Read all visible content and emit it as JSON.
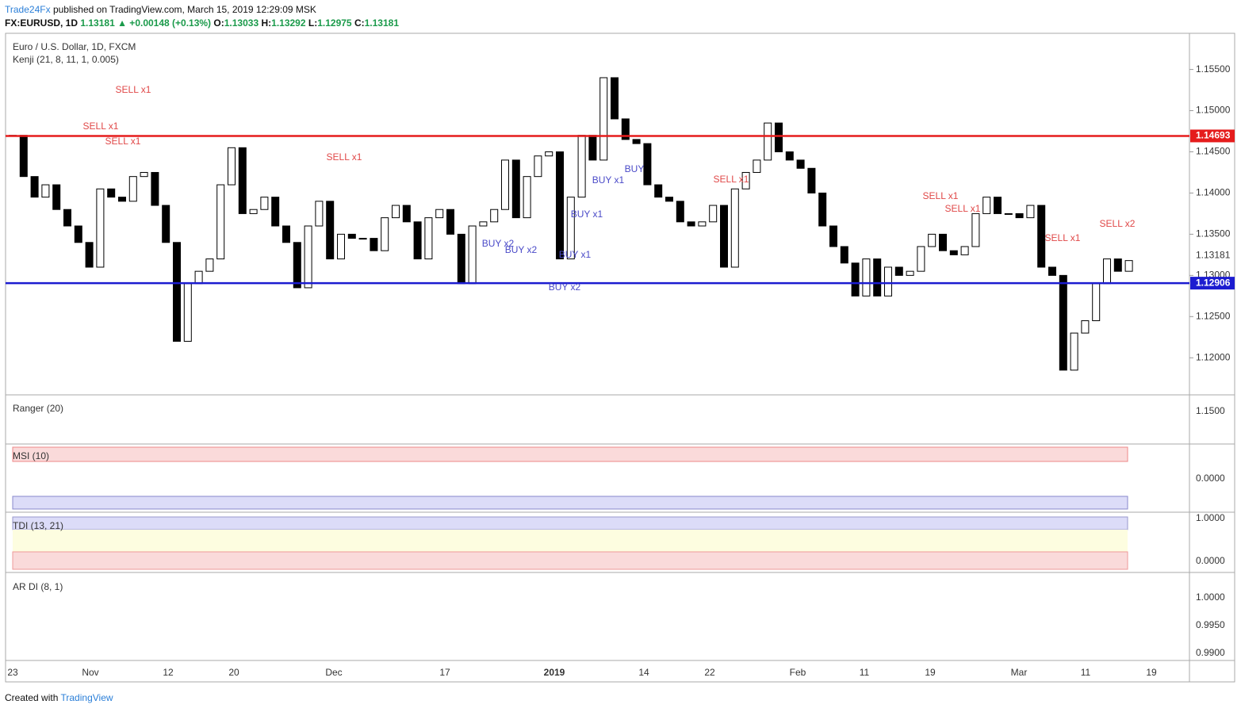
{
  "header": {
    "publisher": "Trade24Fx",
    "published": "published on TradingView.com, March 15, 2019 12:29:09 MSK",
    "symbol": "FX:EURUSD, 1D",
    "last": "1.13181",
    "change": "▲ +0.00148 (+0.13%)",
    "o_label": "O:",
    "o": "1.13033",
    "h_label": "H:",
    "h": "1.13292",
    "l_label": "L:",
    "l": "1.12975",
    "c_label": "C:",
    "c": "1.13181"
  },
  "chart_data": {
    "type": "candlestick",
    "title": "Euro / U.S. Dollar, 1D, FXCM",
    "indicator": "Kenji (21, 8, 11, 1, 0.005)",
    "values": [
      1.147,
      1.142,
      1.1395,
      1.141,
      1.138,
      1.136,
      1.134,
      1.131,
      1.1405,
      1.1395,
      1.139,
      1.142,
      1.1425,
      1.1385,
      1.134,
      1.122,
      1.129,
      1.1305,
      1.132,
      1.141,
      1.1455,
      1.1375,
      1.138,
      1.1395,
      1.136,
      1.134,
      1.1285,
      1.136,
      1.139,
      1.132,
      1.135,
      1.1345,
      1.1345,
      1.133,
      1.137,
      1.1385,
      1.1365,
      1.132,
      1.137,
      1.138,
      1.135,
      1.129,
      1.136,
      1.1365,
      1.138,
      1.144,
      1.137,
      1.142,
      1.1445,
      1.145,
      1.132,
      1.1395,
      1.147,
      1.144,
      1.154,
      1.149,
      1.1465,
      1.146,
      1.141,
      1.1395,
      1.139,
      1.1365,
      1.136,
      1.1365,
      1.1385,
      1.131,
      1.1405,
      1.1425,
      1.144,
      1.1485,
      1.145,
      1.144,
      1.143,
      1.14,
      1.136,
      1.1335,
      1.1315,
      1.1275,
      1.132,
      1.1275,
      1.131,
      1.13,
      1.1305,
      1.1335,
      1.135,
      1.133,
      1.1325,
      1.1335,
      1.1375,
      1.1395,
      1.1375,
      1.1375,
      1.137,
      1.1385,
      1.131,
      1.13,
      1.1185,
      1.123,
      1.1245,
      1.129,
      1.132,
      1.1305,
      1.1318
    ],
    "ylim": [
      1.1155,
      1.1591
    ],
    "yticks": [
      {
        "value": 1.12,
        "label": "1.12000"
      },
      {
        "value": 1.125,
        "label": "1.12500"
      },
      {
        "value": 1.13,
        "label": "1.13000"
      },
      {
        "value": 1.135,
        "label": "1.13500"
      },
      {
        "value": 1.14,
        "label": "1.14000"
      },
      {
        "value": 1.145,
        "label": "1.14500"
      },
      {
        "value": 1.15,
        "label": "1.15000"
      },
      {
        "value": 1.155,
        "label": "1.15500"
      }
    ],
    "levels": [
      {
        "value": 1.14693,
        "color": "#e51c1c"
      },
      {
        "value": 1.12906,
        "color": "#1c1cd0"
      }
    ],
    "last_price": 1.13181,
    "xticks": [
      "23",
      "Nov",
      "12",
      "20",
      "Dec",
      "17",
      "2019",
      "14",
      "22",
      "Feb",
      "11",
      "19",
      "Mar",
      "11",
      "19"
    ],
    "annotations": [
      "SELL x1",
      "SELL x1",
      "SELL x1",
      "SELL x1",
      "BUY x2",
      "BUY x2",
      "BUY x1",
      "BUY x1",
      "BUY x2",
      "BUY x1",
      "BUY",
      "SELL x1",
      "SELL x1",
      "SELL x1",
      "SELL x1",
      "SELL x2"
    ]
  },
  "panels": [
    {
      "title": "Ranger (20)",
      "ticks": [
        "1.1500"
      ]
    },
    {
      "title": "MSI (10)",
      "ticks": [
        "0.0000"
      ]
    },
    {
      "title": "TDI (13, 21)",
      "ticks": [
        "1.0000",
        "0.0000"
      ]
    },
    {
      "title": "AR DI (8, 1)",
      "ticks": [
        "1.0000",
        "0.9950",
        "0.9900"
      ]
    }
  ],
  "footer": {
    "created": "Created with",
    "brand": "TradingView"
  }
}
